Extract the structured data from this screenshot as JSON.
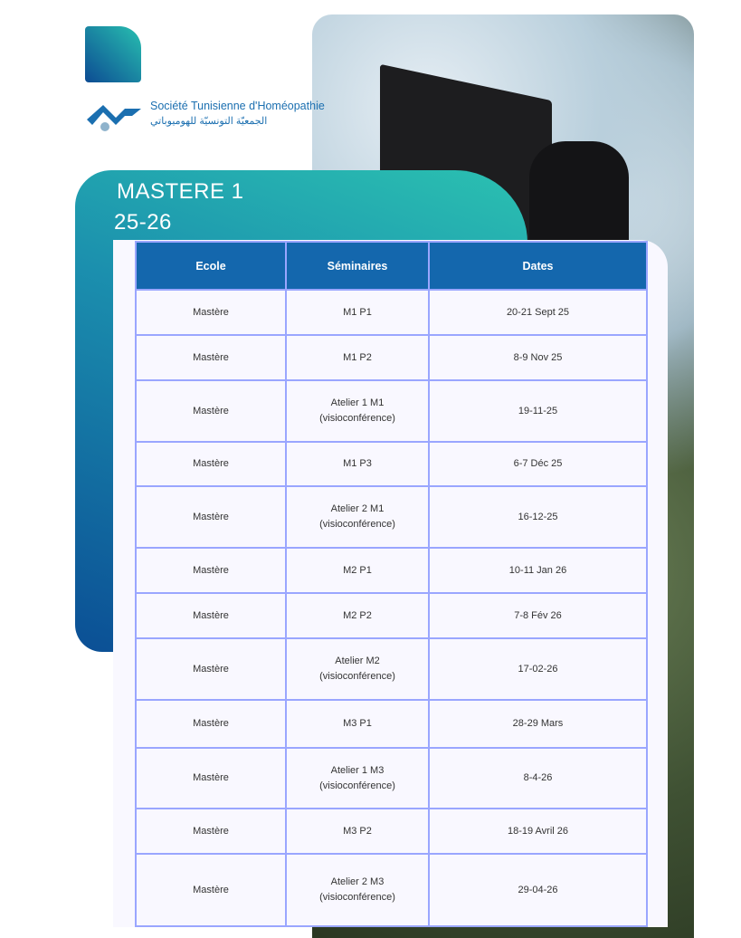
{
  "logo": {
    "name_fr": "Société Tunisienne d'Homéopathie",
    "name_ar": "الجمعيّة التونسيّة للهوميوباتي"
  },
  "heading": {
    "line1": "MASTERE 1",
    "line2": "25-26"
  },
  "table": {
    "headers": [
      "Ecole",
      "Séminaires",
      "Dates"
    ],
    "rows": [
      [
        "Mastère",
        "M1 P1",
        "20-21 Sept 25"
      ],
      [
        "Mastère",
        "M1 P2",
        "8-9 Nov 25"
      ],
      [
        "Mastère",
        "Atelier 1  M1\n(visioconférence)",
        "19-11-25"
      ],
      [
        "Mastère",
        "M1 P3",
        "6-7 Déc 25"
      ],
      [
        "Mastère",
        "Atelier 2 M1\n(visioconférence)",
        "16-12-25"
      ],
      [
        "Mastère",
        "M2 P1",
        "10-11 Jan 26"
      ],
      [
        "Mastère",
        "M2 P2",
        "7-8 Fév 26"
      ],
      [
        "Mastère",
        "Atelier M2\n(visioconférence)",
        "17-02-26"
      ],
      [
        "Mastère",
        "M3 P1",
        "28-29 Mars"
      ],
      [
        "Mastère",
        "Atelier 1 M3\n(visioconférence)",
        "8-4-26"
      ],
      [
        "Mastère",
        "M3 P2",
        "18-19 Avril 26"
      ],
      [
        "Mastère",
        "Atelier 2 M3\n(visioconférence)",
        "29-04-26"
      ]
    ]
  },
  "colors": {
    "header": "#1467ad",
    "border": "#9aa6ff",
    "teal": "#2bc1b1",
    "navy": "#0b4f95"
  }
}
